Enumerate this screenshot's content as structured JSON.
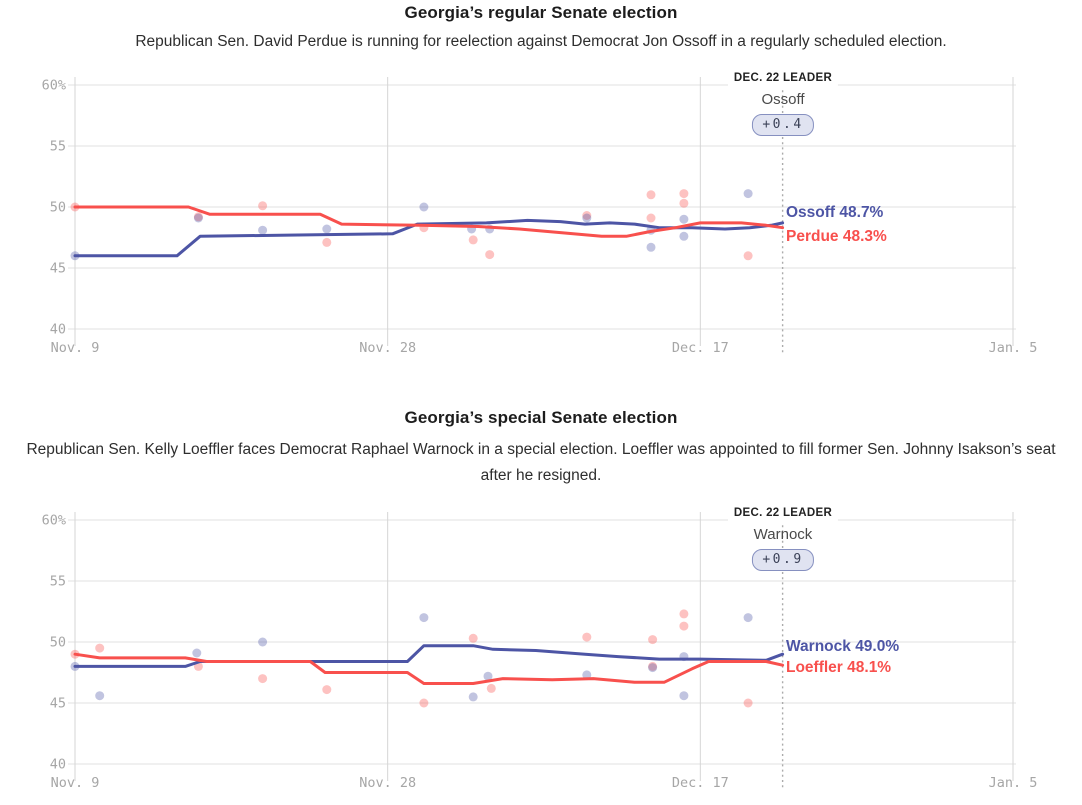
{
  "colors": {
    "dem": "#4d55a5",
    "rep": "#f8504d",
    "grid": "#e0e0e0",
    "grid_v": "#d6d6d6",
    "axis_text": "#a6a6a6",
    "leader_line": "#ababab",
    "pill_bg": "#e0e3f1",
    "pill_border": "#8690c0",
    "pill_text": "#3c4258",
    "title_text": "#1c1c1c",
    "subtitle_text": "#2e2e2e",
    "leader_heading_text": "#222222",
    "leader_name_text": "#4a4a4a"
  },
  "chart_data": [
    {
      "type": "line",
      "title": "Georgia’s regular Senate election",
      "subtitle": "Republican Sen. David Perdue is running for reelection against Democrat Jon Ossoff in a regularly scheduled election.",
      "x_range_days": [
        0,
        57
      ],
      "y_range": [
        40,
        60
      ],
      "grid": true,
      "x_ticks": [
        {
          "day": 0,
          "label": "Nov. 9"
        },
        {
          "day": 19,
          "label": "Nov. 28"
        },
        {
          "day": 38,
          "label": "Dec. 17"
        },
        {
          "day": 57,
          "label": "Jan. 5"
        }
      ],
      "y_ticks": [
        {
          "value": 60,
          "label": "60%"
        },
        {
          "value": 55,
          "label": "55"
        },
        {
          "value": 50,
          "label": "50"
        },
        {
          "value": 45,
          "label": "45"
        },
        {
          "value": 40,
          "label": "40"
        }
      ],
      "annotation": {
        "day": 43,
        "heading": "DEC. 22 LEADER",
        "leader": "Ossoff",
        "margin": "+0.4"
      },
      "series": [
        {
          "name": "Ossoff",
          "party": "dem",
          "final_value": 48.7,
          "final_label": "Ossoff 48.7%",
          "points": [
            [
              0,
              46
            ],
            [
              6.2,
              46
            ],
            [
              7.6,
              47.6
            ],
            [
              13,
              47.7
            ],
            [
              19.3,
              47.8
            ],
            [
              20.8,
              48.6
            ],
            [
              25,
              48.7
            ],
            [
              27.5,
              48.9
            ],
            [
              29.5,
              48.8
            ],
            [
              31,
              48.6
            ],
            [
              32.5,
              48.7
            ],
            [
              34,
              48.6
            ],
            [
              35.5,
              48.3
            ],
            [
              37.5,
              48.3
            ],
            [
              39.5,
              48.2
            ],
            [
              41,
              48.3
            ],
            [
              42.3,
              48.5
            ],
            [
              43,
              48.7
            ]
          ]
        },
        {
          "name": "Perdue",
          "party": "rep",
          "final_value": 48.3,
          "final_label": "Perdue 48.3%",
          "points": [
            [
              0,
              50
            ],
            [
              6.9,
              50
            ],
            [
              8.2,
              49.4
            ],
            [
              14.9,
              49.4
            ],
            [
              16.2,
              48.6
            ],
            [
              21,
              48.5
            ],
            [
              24.5,
              48.4
            ],
            [
              27,
              48.2
            ],
            [
              29.5,
              47.9
            ],
            [
              32,
              47.6
            ],
            [
              33.5,
              47.6
            ],
            [
              35,
              48
            ],
            [
              36.5,
              48.3
            ],
            [
              38,
              48.7
            ],
            [
              40.5,
              48.7
            ],
            [
              42,
              48.5
            ],
            [
              43,
              48.3
            ]
          ]
        }
      ],
      "polls": [
        {
          "x": 0,
          "y": 50,
          "party": "rep"
        },
        {
          "x": 0,
          "y": 46,
          "party": "dem"
        },
        {
          "x": 7.5,
          "y": 49.2,
          "party": "rep"
        },
        {
          "x": 7.5,
          "y": 49.1,
          "party": "dem"
        },
        {
          "x": 11.4,
          "y": 50.1,
          "party": "rep"
        },
        {
          "x": 11.4,
          "y": 48.1,
          "party": "dem"
        },
        {
          "x": 15.3,
          "y": 48.2,
          "party": "dem"
        },
        {
          "x": 15.3,
          "y": 47.1,
          "party": "rep"
        },
        {
          "x": 21.2,
          "y": 50,
          "party": "dem"
        },
        {
          "x": 21.2,
          "y": 48.3,
          "party": "rep"
        },
        {
          "x": 24.1,
          "y": 48.2,
          "party": "dem"
        },
        {
          "x": 24.2,
          "y": 47.3,
          "party": "rep"
        },
        {
          "x": 25.2,
          "y": 48.2,
          "party": "dem"
        },
        {
          "x": 25.2,
          "y": 46.1,
          "party": "rep"
        },
        {
          "x": 31.1,
          "y": 49.3,
          "party": "rep"
        },
        {
          "x": 31.1,
          "y": 49.1,
          "party": "dem"
        },
        {
          "x": 35,
          "y": 51,
          "party": "rep"
        },
        {
          "x": 35,
          "y": 49.1,
          "party": "rep"
        },
        {
          "x": 35,
          "y": 48.1,
          "party": "dem"
        },
        {
          "x": 35,
          "y": 46.7,
          "party": "dem"
        },
        {
          "x": 37,
          "y": 51.1,
          "party": "rep"
        },
        {
          "x": 37,
          "y": 50.3,
          "party": "rep"
        },
        {
          "x": 37,
          "y": 49,
          "party": "dem"
        },
        {
          "x": 37,
          "y": 47.6,
          "party": "dem"
        },
        {
          "x": 40.9,
          "y": 51.1,
          "party": "dem"
        },
        {
          "x": 40.9,
          "y": 46,
          "party": "rep"
        }
      ]
    },
    {
      "type": "line",
      "title": "Georgia’s special Senate election",
      "subtitle": "Republican Sen. Kelly Loeffler faces Democrat Raphael Warnock in a special election. Loeffler was appointed to fill former Sen. Johnny Isakson’s seat after he resigned.",
      "x_range_days": [
        0,
        57
      ],
      "y_range": [
        40,
        60
      ],
      "grid": true,
      "x_ticks": [
        {
          "day": 0,
          "label": "Nov. 9"
        },
        {
          "day": 19,
          "label": "Nov. 28"
        },
        {
          "day": 38,
          "label": "Dec. 17"
        },
        {
          "day": 57,
          "label": "Jan. 5"
        }
      ],
      "y_ticks": [
        {
          "value": 60,
          "label": "60%"
        },
        {
          "value": 55,
          "label": "55"
        },
        {
          "value": 50,
          "label": "50"
        },
        {
          "value": 45,
          "label": "45"
        },
        {
          "value": 40,
          "label": "40"
        }
      ],
      "annotation": {
        "day": 43,
        "heading": "DEC. 22 LEADER",
        "leader": "Warnock",
        "margin": "+0.9"
      },
      "series": [
        {
          "name": "Warnock",
          "party": "dem",
          "final_value": 49.0,
          "final_label": "Warnock 49.0%",
          "points": [
            [
              0,
              48
            ],
            [
              6.7,
              48
            ],
            [
              7.6,
              48.4
            ],
            [
              20.2,
              48.4
            ],
            [
              21.2,
              49.7
            ],
            [
              24.2,
              49.7
            ],
            [
              25.4,
              49.4
            ],
            [
              28,
              49.3
            ],
            [
              31,
              49
            ],
            [
              33,
              48.8
            ],
            [
              35.5,
              48.6
            ],
            [
              38,
              48.6
            ],
            [
              42,
              48.5
            ],
            [
              43,
              49
            ]
          ]
        },
        {
          "name": "Loeffler",
          "party": "rep",
          "final_value": 48.1,
          "final_label": "Loeffler 48.1%",
          "points": [
            [
              0,
              49
            ],
            [
              1.5,
              48.7
            ],
            [
              6.7,
              48.7
            ],
            [
              8,
              48.4
            ],
            [
              14.3,
              48.4
            ],
            [
              15.2,
              47.5
            ],
            [
              20.2,
              47.5
            ],
            [
              21.2,
              46.6
            ],
            [
              24.2,
              46.6
            ],
            [
              26,
              47
            ],
            [
              29,
              46.9
            ],
            [
              31.5,
              47
            ],
            [
              34,
              46.7
            ],
            [
              35.8,
              46.7
            ],
            [
              37.5,
              47.8
            ],
            [
              38.5,
              48.4
            ],
            [
              42,
              48.4
            ],
            [
              43,
              48.1
            ]
          ]
        }
      ],
      "polls": [
        {
          "x": 0,
          "y": 49,
          "party": "rep"
        },
        {
          "x": 0,
          "y": 48,
          "party": "dem"
        },
        {
          "x": 1.5,
          "y": 49.5,
          "party": "rep"
        },
        {
          "x": 1.5,
          "y": 45.6,
          "party": "dem"
        },
        {
          "x": 7.4,
          "y": 49.1,
          "party": "dem"
        },
        {
          "x": 7.5,
          "y": 48,
          "party": "rep"
        },
        {
          "x": 11.4,
          "y": 50,
          "party": "dem"
        },
        {
          "x": 11.4,
          "y": 47,
          "party": "rep"
        },
        {
          "x": 15.3,
          "y": 46.1,
          "party": "rep"
        },
        {
          "x": 21.2,
          "y": 52,
          "party": "dem"
        },
        {
          "x": 21.2,
          "y": 45,
          "party": "rep"
        },
        {
          "x": 24.2,
          "y": 50.3,
          "party": "rep"
        },
        {
          "x": 24.2,
          "y": 45.5,
          "party": "dem"
        },
        {
          "x": 25.1,
          "y": 47.2,
          "party": "dem"
        },
        {
          "x": 25.3,
          "y": 46.2,
          "party": "rep"
        },
        {
          "x": 31.1,
          "y": 50.4,
          "party": "rep"
        },
        {
          "x": 31.1,
          "y": 47.3,
          "party": "dem"
        },
        {
          "x": 35.1,
          "y": 50.2,
          "party": "rep"
        },
        {
          "x": 35.1,
          "y": 48,
          "party": "rep"
        },
        {
          "x": 35.1,
          "y": 47.9,
          "party": "dem"
        },
        {
          "x": 37,
          "y": 52.3,
          "party": "rep"
        },
        {
          "x": 37,
          "y": 51.3,
          "party": "rep"
        },
        {
          "x": 37,
          "y": 48.8,
          "party": "dem"
        },
        {
          "x": 37,
          "y": 45.6,
          "party": "dem"
        },
        {
          "x": 40.9,
          "y": 52,
          "party": "dem"
        },
        {
          "x": 40.9,
          "y": 45,
          "party": "rep"
        }
      ]
    }
  ]
}
